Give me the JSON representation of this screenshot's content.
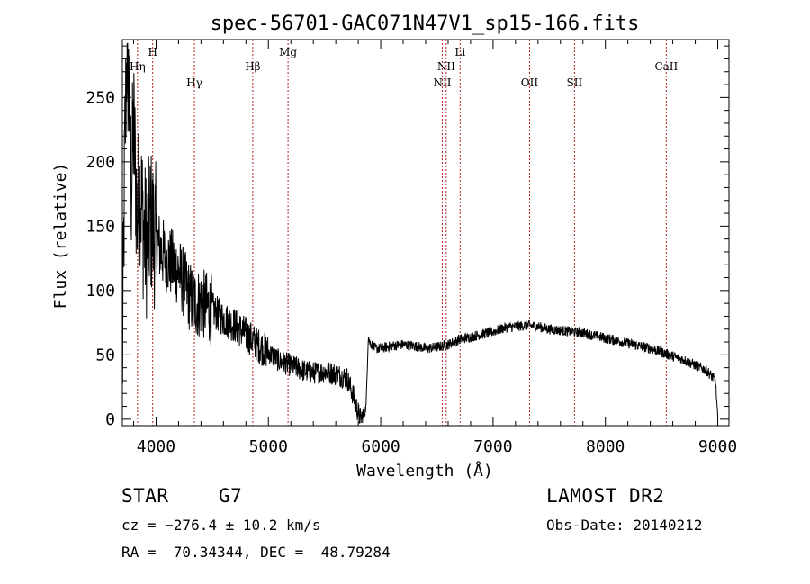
{
  "chart_data": {
    "type": "line",
    "title": "spec-56701-GAC071N47V1_sp15-166.fits",
    "xlabel": "Wavelength (Å)",
    "ylabel": "Flux (relative)",
    "xlim": [
      3700,
      9100
    ],
    "ylim": [
      -5,
      295
    ],
    "xticks": [
      4000,
      5000,
      6000,
      7000,
      8000,
      9000
    ],
    "yticks": [
      0,
      50,
      100,
      150,
      200,
      250
    ],
    "grid": false,
    "line_color": "#000000",
    "marker_color": "#b22222",
    "lines": [
      {
        "label": "Hη",
        "x": 3835,
        "row": 2
      },
      {
        "label": "H",
        "x": 3970,
        "row": 1
      },
      {
        "label": "Hγ",
        "x": 4341,
        "row": 3
      },
      {
        "label": "Hβ",
        "x": 4861,
        "row": 2
      },
      {
        "label": "Mg",
        "x": 5175,
        "row": 1
      },
      {
        "label": "NII",
        "x": 6548,
        "row": 3
      },
      {
        "label": "NII",
        "x": 6583,
        "row": 2
      },
      {
        "label": "Li",
        "x": 6707,
        "row": 1
      },
      {
        "label": "OII",
        "x": 7325,
        "row": 3
      },
      {
        "label": "SII",
        "x": 7725,
        "row": 3
      },
      {
        "label": "CaII",
        "x": 8542,
        "row": 2
      }
    ],
    "spectrum_anchors": {
      "x": [
        3700,
        3720,
        3740,
        3760,
        3780,
        3800,
        3830,
        3860,
        3890,
        3920,
        3950,
        4000,
        4050,
        4100,
        4150,
        4200,
        4250,
        4300,
        4350,
        4400,
        4500,
        4600,
        4700,
        4800,
        4900,
        5000,
        5100,
        5200,
        5300,
        5400,
        5500,
        5600,
        5700,
        5750,
        5800,
        5820,
        5850,
        5870,
        5880,
        5890,
        5900,
        5920,
        5950,
        6000,
        6100,
        6200,
        6300,
        6400,
        6500,
        6600,
        6700,
        6800,
        6900,
        7000,
        7100,
        7200,
        7300,
        7400,
        7500,
        7600,
        7700,
        7800,
        7900,
        8000,
        8100,
        8200,
        8300,
        8400,
        8500,
        8600,
        8700,
        8800,
        8900,
        8980,
        9000
      ],
      "flux": [
        30,
        200,
        290,
        250,
        180,
        230,
        160,
        180,
        145,
        135,
        155,
        140,
        130,
        125,
        120,
        115,
        105,
        95,
        90,
        90,
        85,
        78,
        73,
        66,
        58,
        52,
        45,
        42,
        38,
        36,
        37,
        35,
        32,
        20,
        5,
        0,
        3,
        10,
        40,
        65,
        60,
        58,
        55,
        55,
        57,
        58,
        57,
        55,
        56,
        58,
        62,
        64,
        66,
        68,
        71,
        72,
        73,
        72,
        70,
        69,
        68,
        67,
        65,
        63,
        61,
        59,
        57,
        55,
        52,
        49,
        46,
        42,
        38,
        30,
        0
      ]
    }
  },
  "info": {
    "object_class": "STAR",
    "subclass": "G7",
    "survey": "LAMOST DR2",
    "cz": "cz = −276.4 ± 10.2 km/s",
    "obs_date": "Obs-Date: 20140212",
    "coords": "RA =  70.34344, DEC =  48.79284"
  }
}
